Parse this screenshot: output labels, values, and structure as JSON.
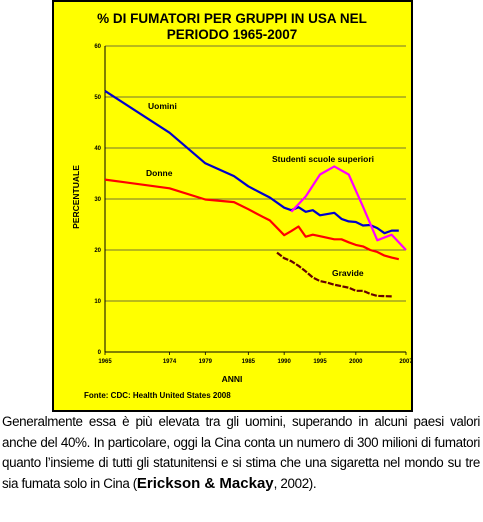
{
  "chart_data": {
    "type": "line",
    "title_lines": [
      "% DI FUMATORI PER GRUPPI IN USA NEL",
      "PERIODO 1965-2007"
    ],
    "xlabel": "ANNI",
    "ylabel": "PERCENTUALE",
    "xlim": [
      1965,
      2007
    ],
    "ylim": [
      0,
      60
    ],
    "x_ticks": [
      1965,
      1974,
      1979,
      1985,
      1990,
      1995,
      2000,
      2007
    ],
    "y_ticks": [
      0,
      10,
      20,
      30,
      40,
      50,
      60
    ],
    "grid": "horizontal",
    "source": "Fonte: CDC: Health United States 2008",
    "series": [
      {
        "name": "Uomini",
        "color": "#0000cc",
        "x": [
          1965,
          1974,
          1979,
          1983,
          1985,
          1987,
          1988,
          1990,
          1991,
          1992,
          1993,
          1994,
          1995,
          1997,
          1998,
          1999,
          2000,
          2001,
          2002,
          2003,
          2004,
          2005,
          2006
        ],
        "y": [
          51.2,
          43,
          37,
          34.5,
          32.5,
          31,
          30.3,
          28.3,
          27.8,
          28.4,
          27.5,
          27.8,
          26.8,
          27.3,
          26.1,
          25.6,
          25.5,
          24.8,
          24.9,
          24.3,
          23.3,
          23.8,
          23.8
        ]
      },
      {
        "name": "Donne",
        "color": "#ff0000",
        "x": [
          1965,
          1974,
          1979,
          1983,
          1985,
          1987,
          1988,
          1990,
          1991,
          1992,
          1993,
          1994,
          1995,
          1997,
          1998,
          1999,
          2000,
          2001,
          2002,
          2003,
          2004,
          2005,
          2006
        ],
        "y": [
          33.8,
          32.1,
          29.9,
          29.4,
          28,
          26.5,
          25.8,
          22.9,
          23.7,
          24.6,
          22.6,
          23,
          22.7,
          22.1,
          22.1,
          21.5,
          21,
          20.7,
          20,
          19.6,
          18.9,
          18.5,
          18.2
        ]
      },
      {
        "name": "Studenti scuole superiori",
        "color": "#ff00ff",
        "x": [
          1991,
          1993,
          1995,
          1997,
          1999,
          2001,
          2003,
          2005,
          2007
        ],
        "y": [
          27.5,
          30.5,
          34.8,
          36.4,
          34.8,
          28.5,
          21.9,
          23,
          20
        ]
      },
      {
        "name": "Gravide",
        "color": "#660000",
        "x": [
          1989,
          1990,
          1991,
          1992,
          1993,
          1994,
          1995,
          1996,
          1997,
          1998,
          1999,
          2000,
          2001,
          2002,
          2003,
          2005
        ],
        "y": [
          19.5,
          18.4,
          17.8,
          16.9,
          15.8,
          14.6,
          13.9,
          13.6,
          13.2,
          12.9,
          12.6,
          12,
          12,
          11.4,
          11,
          10.9
        ]
      }
    ]
  },
  "caption": {
    "text": "Generalmente essa è più elevata tra gli uomini, superando in alcuni paesi valori anche del 40%. In particolare, oggi la Cina conta un numero di 300 milioni di fumatori quanto l’insieme di tutti gli statunitensi e si stima che una sigaretta nel mondo su tre sia fumata solo in Cina (",
    "citation_authors": "Erickson & Mackay",
    "citation_year": ", 2002)."
  }
}
